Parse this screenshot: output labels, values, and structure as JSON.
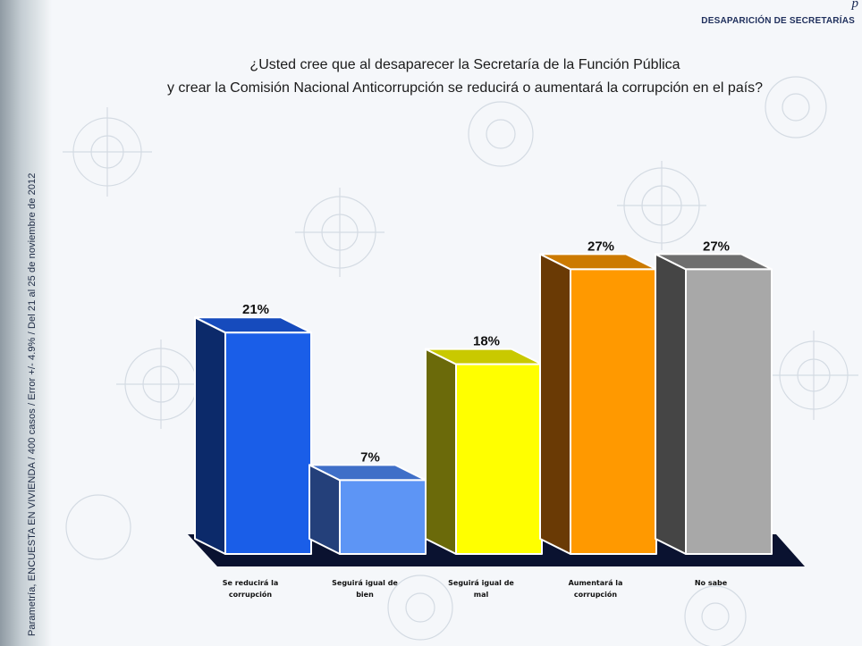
{
  "header": {
    "brand_mark": "p",
    "section_tag": "DESAPARICIÓN DE SECRETARÍAS"
  },
  "side_note": "Parametría, ENCUESTA EN VIVIENDA / 400 casos / Error +/- 4.9% / Del 21 al 25 de noviembre de 2012",
  "question": {
    "line1": "¿Usted cree que al desaparecer la Secretaría de la Función Pública",
    "line2": "y crear la Comisión Nacional Anticorrupción se reducirá o aumentará la corrupción en el país?"
  },
  "chart_data": {
    "type": "bar",
    "title": "¿Usted cree que al desaparecer la Secretaría de la Función Pública y crear la Comisión Nacional Anticorrupción se reducirá o aumentará la corrupción en el país?",
    "categories": [
      [
        "Se reducirá la",
        "corrupción"
      ],
      [
        "Seguirá igual de",
        "bien"
      ],
      [
        "Seguirá igual de",
        "mal"
      ],
      [
        "Aumentará la",
        "corrupción"
      ],
      [
        "No sabe"
      ]
    ],
    "values": [
      21,
      7,
      18,
      27,
      27
    ],
    "value_labels": [
      "21%",
      "7%",
      "18%",
      "27%",
      "27%"
    ],
    "units": "%",
    "ylim": [
      0,
      30
    ],
    "grid": false,
    "legend": "none",
    "colors": {
      "fronts": [
        "#1a5ee8",
        "#5d95f5",
        "#ffff00",
        "#ff9900",
        "#a8a8a8"
      ],
      "sides": [
        "#0c2a6a",
        "#24407a",
        "#6b6a0a",
        "#6a3a05",
        "#454545"
      ],
      "tops": [
        "#164bbd",
        "#3f6fc8",
        "#c9c900",
        "#cc7a00",
        "#6e6e6e"
      ],
      "floor": "#0a1230"
    }
  }
}
